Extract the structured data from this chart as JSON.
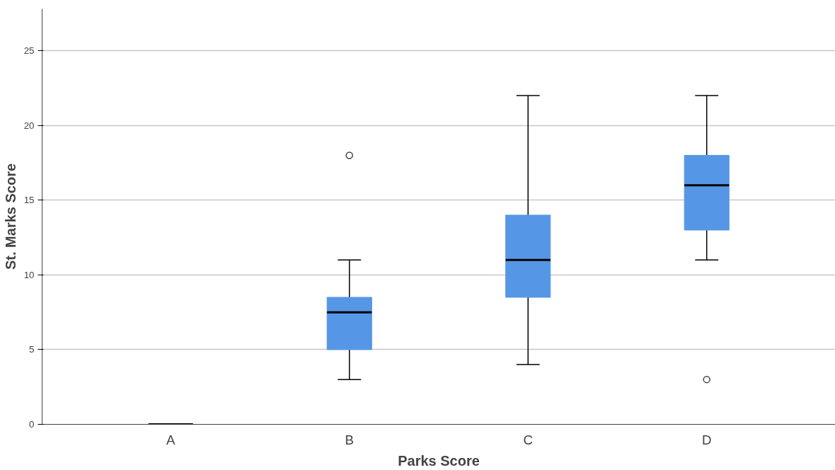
{
  "chart_data": {
    "type": "box",
    "xlabel": "Parks Score",
    "ylabel": "St. Marks Score",
    "categories": [
      "A",
      "B",
      "C",
      "D"
    ],
    "color": "#5597e6",
    "boxes": [
      {
        "low": 0,
        "q1": 0,
        "median": 0,
        "q3": 0,
        "high": 0
      },
      {
        "low": 3,
        "q1": 5,
        "median": 7.5,
        "q3": 8.5,
        "high": 11,
        "outliers": [
          18
        ]
      },
      {
        "low": 4,
        "q1": 8.5,
        "median": 11,
        "q3": 14,
        "high": 22
      },
      {
        "low": 11,
        "q1": 13,
        "median": 16,
        "q3": 18,
        "high": 22,
        "outliers": [
          3
        ]
      }
    ],
    "ylim": [
      0,
      27.8
    ],
    "yticks": [
      0,
      5,
      10,
      15,
      20,
      25
    ],
    "grid": "y"
  }
}
